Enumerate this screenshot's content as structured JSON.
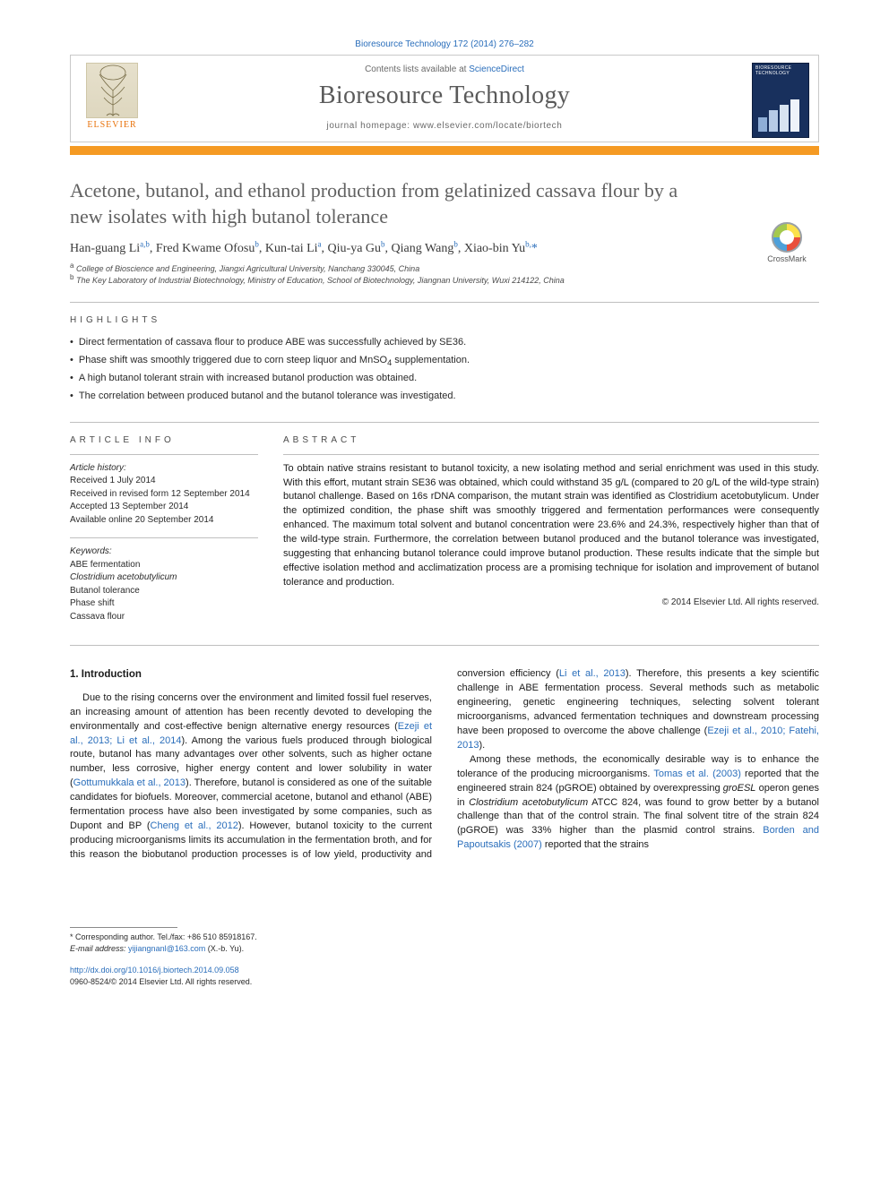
{
  "colors": {
    "accent_orange": "#f59a23",
    "link_blue": "#2a6ebb",
    "text_gray": "#616161",
    "rule_gray": "#bfbfbf",
    "cover_navy": "#18305d"
  },
  "typography": {
    "title_fontsize_pt": 17,
    "journal_name_fontsize_pt": 21,
    "body_fontsize_pt": 8.5,
    "authors_fontsize_pt": 10.5,
    "small_fontsize_pt": 7
  },
  "header": {
    "citation_prefix": "Bioresource Technology 172 (2014) 276–282",
    "contents_line_pre": "Contents lists available at ",
    "contents_link": "ScienceDirect",
    "journal_name": "Bioresource Technology",
    "homepage_line": "journal homepage: www.elsevier.com/locate/biortech",
    "publisher": "ELSEVIER",
    "cover_title": "BIORESOURCE TECHNOLOGY"
  },
  "crossmark": {
    "label": "CrossMark"
  },
  "article": {
    "title": "Acetone, butanol, and ethanol production from gelatinized cassava flour by a new isolates with high butanol tolerance",
    "authors_html": "Han-guang Li<sup>a,b</sup>, Fred Kwame Ofosu<sup>b</sup>, Kun-tai Li<sup>a</sup>, Qiu-ya Gu<sup>b</sup>, Qiang Wang<sup>b</sup>, Xiao-bin Yu<sup>b,</sup><span class='corr'>*</span>",
    "affiliations": [
      "a College of Bioscience and Engineering, Jiangxi Agricultural University, Nanchang 330045, China",
      "b The Key Laboratory of Industrial Biotechnology, Ministry of Education, School of Biotechnology, Jiangnan University, Wuxi 214122, China"
    ]
  },
  "highlights": {
    "heading": "HIGHLIGHTS",
    "items": [
      "Direct fermentation of cassava flour to produce ABE was successfully achieved by SE36.",
      "Phase shift was smoothly triggered due to corn steep liquor and MnSO4 supplementation.",
      "A high butanol tolerant strain with increased butanol production was obtained.",
      "The correlation between produced butanol and the butanol tolerance was investigated."
    ]
  },
  "article_info": {
    "heading": "ARTICLE INFO",
    "history_label": "Article history:",
    "history": [
      "Received 1 July 2014",
      "Received in revised form 12 September 2014",
      "Accepted 13 September 2014",
      "Available online 20 September 2014"
    ],
    "keywords_label": "Keywords:",
    "keywords": [
      "ABE fermentation",
      "Clostridium acetobutylicum",
      "Butanol tolerance",
      "Phase shift",
      "Cassava flour"
    ]
  },
  "abstract": {
    "heading": "ABSTRACT",
    "text": "To obtain native strains resistant to butanol toxicity, a new isolating method and serial enrichment was used in this study. With this effort, mutant strain SE36 was obtained, which could withstand 35 g/L (compared to 20 g/L of the wild-type strain) butanol challenge. Based on 16s rDNA comparison, the mutant strain was identified as Clostridium acetobutylicum. Under the optimized condition, the phase shift was smoothly triggered and fermentation performances were consequently enhanced. The maximum total solvent and butanol concentration were 23.6% and 24.3%, respectively higher than that of the wild-type strain. Furthermore, the correlation between butanol produced and the butanol tolerance was investigated, suggesting that enhancing butanol tolerance could improve butanol production. These results indicate that the simple but effective isolation method and acclimatization process are a promising technique for isolation and improvement of butanol tolerance and production.",
    "copyright": "© 2014 Elsevier Ltd. All rights reserved."
  },
  "body": {
    "section_number": "1.",
    "section_title": "Introduction",
    "p1_pre": "Due to the rising concerns over the environment and limited fossil fuel reserves, an increasing amount of attention has been recently devoted to developing the environmentally and cost-effective benign alternative energy resources (",
    "p1_link1": "Ezeji et al., 2013; Li et al., 2014",
    "p1_mid1": "). Among the various fuels produced through biological route, butanol has many advantages over other solvents, such as higher octane number, less corrosive, higher energy content and lower solubility in water (",
    "p1_link2": "Gottumukkala et al., 2013",
    "p1_mid2": "). Therefore, butanol is considered as one of the suitable candidates for biofuels. Moreover, commercial acetone, butanol and ethanol (ABE) fermentation process have also been investigated by some companies, such as Dupont and BP (",
    "p1_link3": "Cheng et al., 2012",
    "p1_post": "). However, ",
    "p2_pre": "butanol toxicity to the current producing microorganisms limits its accumulation in the fermentation broth, and for this reason the biobutanol production processes is of low yield, productivity and conversion efficiency (",
    "p2_link1": "Li et al., 2013",
    "p2_mid1": "). Therefore, this presents a key scientific challenge in ABE fermentation process. Several methods such as metabolic engineering, genetic engineering techniques, selecting solvent tolerant microorganisms, advanced fermentation techniques and downstream processing have been proposed to overcome the above challenge (",
    "p2_link2": "Ezeji et al., 2010; Fatehi, 2013",
    "p2_post": ").",
    "p3_pre": "Among these methods, the economically desirable way is to enhance the tolerance of the producing microorganisms. ",
    "p3_link1": "Tomas et al. (2003)",
    "p3_mid1": " reported that the engineered strain 824 (pGROE) obtained by overexpressing ",
    "p3_gene": "groESL",
    "p3_mid2": " operon genes in ",
    "p3_species": "Clostridium acetobutylicum",
    "p3_mid3": " ATCC 824, was found to grow better by a butanol challenge than that of the control strain. The final solvent titre of the strain 824 (pGROE) was 33% higher than the plasmid control strains. ",
    "p3_link2": "Borden and Papoutsakis (2007)",
    "p3_post": " reported that the strains"
  },
  "footer": {
    "corr_line": "* Corresponding author. Tel./fax: +86 510 85918167.",
    "email_label": "E-mail address:",
    "email": "yijiangnanl@163.com",
    "email_suffix": " (X.-b. Yu).",
    "doi_url": "http://dx.doi.org/10.1016/j.biortech.2014.09.058",
    "issn_line": "0960-8524/© 2014 Elsevier Ltd. All rights reserved."
  }
}
